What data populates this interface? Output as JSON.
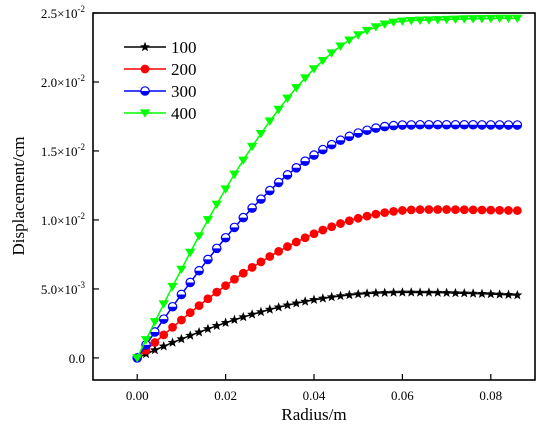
{
  "chart_data": {
    "type": "line",
    "xlabel": "Radius/m",
    "ylabel": "Displacement/cm",
    "xlim": [
      -0.01,
      0.09
    ],
    "ylim": [
      -0.0016,
      0.025
    ],
    "x_ticks": [
      {
        "value": 0.0,
        "label": "0.00"
      },
      {
        "value": 0.02,
        "label": "0.02"
      },
      {
        "value": 0.04,
        "label": "0.04"
      },
      {
        "value": 0.06,
        "label": "0.06"
      },
      {
        "value": 0.08,
        "label": "0.08"
      }
    ],
    "y_ticks": [
      {
        "value": 0.0,
        "mant": "0.0",
        "exp": ""
      },
      {
        "value": 0.005,
        "mant": "5.0×10",
        "exp": "-3"
      },
      {
        "value": 0.01,
        "mant": "1.0×10",
        "exp": "-2"
      },
      {
        "value": 0.015,
        "mant": "1.5×10",
        "exp": "-2"
      },
      {
        "value": 0.02,
        "mant": "2.0×10",
        "exp": "-2"
      },
      {
        "value": 0.025,
        "mant": "2.5×10",
        "exp": "-2"
      }
    ],
    "x": [
      0.0,
      0.002,
      0.004,
      0.006,
      0.008,
      0.01,
      0.012,
      0.014,
      0.016,
      0.018,
      0.02,
      0.022,
      0.024,
      0.026,
      0.028,
      0.03,
      0.032,
      0.034,
      0.036,
      0.038,
      0.04,
      0.042,
      0.044,
      0.046,
      0.048,
      0.05,
      0.052,
      0.054,
      0.056,
      0.058,
      0.06,
      0.062,
      0.064,
      0.066,
      0.068,
      0.07,
      0.072,
      0.074,
      0.076,
      0.078,
      0.08,
      0.082,
      0.084,
      0.086
    ],
    "series": [
      {
        "name": "100",
        "color": "#000000",
        "marker": "star",
        "values": [
          0.0,
          0.00029,
          0.00057,
          0.00084,
          0.00111,
          0.00137,
          0.00162,
          0.00186,
          0.0021,
          0.00233,
          0.00255,
          0.00276,
          0.00296,
          0.00315,
          0.00333,
          0.00351,
          0.00367,
          0.00382,
          0.00396,
          0.00409,
          0.00421,
          0.00431,
          0.00441,
          0.00449,
          0.00456,
          0.00462,
          0.00467,
          0.0047,
          0.00472,
          0.00474,
          0.00475,
          0.00475,
          0.00474,
          0.00474,
          0.00473,
          0.00472,
          0.0047,
          0.00469,
          0.00467,
          0.00465,
          0.00463,
          0.0046,
          0.00458,
          0.00455
        ]
      },
      {
        "name": "200",
        "color": "#ff0000",
        "marker": "circle-filled",
        "values": [
          0.0,
          0.00056,
          0.00112,
          0.00167,
          0.00222,
          0.00275,
          0.00328,
          0.00379,
          0.00429,
          0.00477,
          0.00524,
          0.0057,
          0.00614,
          0.00656,
          0.00696,
          0.00735,
          0.00772,
          0.00807,
          0.0084,
          0.00871,
          0.009,
          0.00927,
          0.00951,
          0.00974,
          0.00994,
          0.01012,
          0.01028,
          0.01042,
          0.01053,
          0.01062,
          0.01069,
          0.01073,
          0.01075,
          0.01076,
          0.01076,
          0.01076,
          0.01075,
          0.01074,
          0.01073,
          0.01072,
          0.01071,
          0.0107,
          0.01069,
          0.01068
        ]
      },
      {
        "name": "300",
        "color": "#0000ff",
        "marker": "circle-half",
        "values": [
          0.0,
          0.00095,
          0.00188,
          0.00281,
          0.00371,
          0.0046,
          0.00547,
          0.00632,
          0.00714,
          0.00794,
          0.00871,
          0.00946,
          0.01017,
          0.01086,
          0.01151,
          0.01213,
          0.01272,
          0.01327,
          0.01378,
          0.01426,
          0.0147,
          0.0151,
          0.01546,
          0.01578,
          0.01606,
          0.0163,
          0.0165,
          0.01666,
          0.01677,
          0.01684,
          0.01688,
          0.01689,
          0.0169,
          0.0169,
          0.0169,
          0.0169,
          0.0169,
          0.0169,
          0.0169,
          0.01689,
          0.01689,
          0.01689,
          0.01688,
          0.01688
        ]
      },
      {
        "name": "400",
        "color": "#00ff00",
        "marker": "triangle-down",
        "values": [
          0.0,
          0.00132,
          0.00262,
          0.00391,
          0.00518,
          0.00642,
          0.00765,
          0.00884,
          0.01001,
          0.01114,
          0.01224,
          0.01331,
          0.01433,
          0.01532,
          0.01626,
          0.01716,
          0.01801,
          0.01882,
          0.01958,
          0.02029,
          0.02095,
          0.02155,
          0.0221,
          0.0226,
          0.02303,
          0.02341,
          0.02373,
          0.02399,
          0.02419,
          0.02433,
          0.02441,
          0.02445,
          0.02447,
          0.02449,
          0.02451,
          0.02453,
          0.02455,
          0.02457,
          0.02458,
          0.02459,
          0.0246,
          0.02461,
          0.02461,
          0.02461
        ]
      }
    ],
    "legend": {
      "placement": "top-left",
      "entries": [
        "100",
        "200",
        "300",
        "400"
      ]
    },
    "grid": false
  }
}
